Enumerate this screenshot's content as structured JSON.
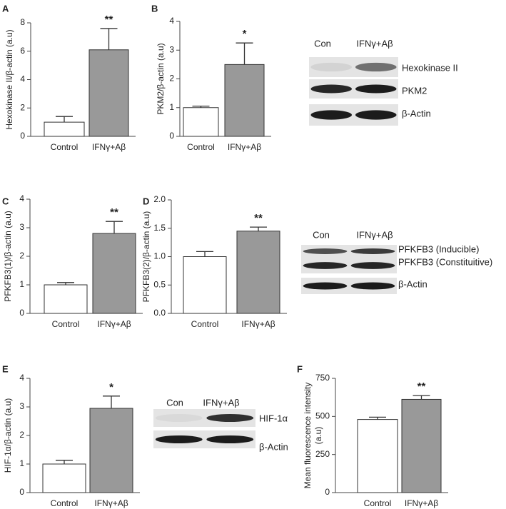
{
  "chart_data": [
    {
      "type": "bar",
      "panel": "A",
      "ylabel": "Hexokinase II/β-actin (a.u)",
      "categories": [
        "Control",
        "IFNγ+Aβ"
      ],
      "values": [
        1.0,
        6.1
      ],
      "errors": [
        0.4,
        1.5
      ],
      "colors": [
        "#ffffff",
        "#999999"
      ],
      "annotation": "**",
      "ylim": [
        0,
        8
      ],
      "yticks": [
        0,
        2,
        4,
        6,
        8
      ]
    },
    {
      "type": "bar",
      "panel": "B",
      "ylabel": "PKM2/β-actin (a.u)",
      "categories": [
        "Control",
        "IFNγ+Aβ"
      ],
      "values": [
        1.0,
        2.5
      ],
      "errors": [
        0.05,
        0.75
      ],
      "colors": [
        "#ffffff",
        "#999999"
      ],
      "annotation": "*",
      "ylim": [
        0,
        4
      ],
      "yticks": [
        0,
        1,
        2,
        3,
        4
      ],
      "blot": {
        "columns": [
          "Con",
          "IFNγ+Aβ"
        ],
        "rows": [
          "Hexokinase II",
          "PKM2",
          "β-Actin"
        ]
      }
    },
    {
      "type": "bar",
      "panel": "C",
      "ylabel": "PFKFB3(1)/β-actin (a.u)",
      "categories": [
        "Control",
        "IFNγ+Aβ"
      ],
      "values": [
        1.0,
        2.8
      ],
      "errors": [
        0.08,
        0.42
      ],
      "colors": [
        "#ffffff",
        "#999999"
      ],
      "annotation": "**",
      "ylim": [
        0,
        4
      ],
      "yticks": [
        0,
        1,
        2,
        3,
        4
      ]
    },
    {
      "type": "bar",
      "panel": "D",
      "ylabel": "PFKFB3(2)/β-actin (a.u)",
      "categories": [
        "Control",
        "IFNγ+Aβ"
      ],
      "values": [
        1.0,
        1.45
      ],
      "errors": [
        0.09,
        0.07
      ],
      "colors": [
        "#ffffff",
        "#999999"
      ],
      "annotation": "**",
      "ylim": [
        0,
        2
      ],
      "yticks": [
        {
          "value": 0,
          "label": "0.0"
        },
        {
          "value": 0.5,
          "label": "0.5"
        },
        {
          "value": 1,
          "label": "1.0"
        },
        {
          "value": 1.5,
          "label": "1.5"
        },
        {
          "value": 2,
          "label": "2.0"
        }
      ],
      "blot": {
        "columns": [
          "Con",
          "IFNγ+Aβ"
        ],
        "rows": [
          "PFKFB3 (Inducible)",
          "PFKFB3 (Constituitive)",
          "β-Actin"
        ]
      }
    },
    {
      "type": "bar",
      "panel": "E",
      "ylabel": "HIF-1α/β-actin (a.u)",
      "categories": [
        "Control",
        "IFNγ+Aβ"
      ],
      "values": [
        1.0,
        2.95
      ],
      "errors": [
        0.13,
        0.43
      ],
      "colors": [
        "#ffffff",
        "#999999"
      ],
      "annotation": "*",
      "ylim": [
        0,
        4
      ],
      "yticks": [
        0,
        1,
        2,
        3,
        4
      ],
      "blot": {
        "columns": [
          "Con",
          "IFNγ+Aβ"
        ],
        "rows": [
          "HIF-1α",
          "β-Actin"
        ]
      }
    },
    {
      "type": "bar",
      "panel": "F",
      "ylabel": [
        "Mean fluorescence intensity",
        "(a.u)"
      ],
      "categories": [
        "Control",
        "IFNγ+Aβ"
      ],
      "values": [
        480,
        612
      ],
      "errors": [
        15,
        25
      ],
      "colors": [
        "#ffffff",
        "#999999"
      ],
      "annotation": "**",
      "ylim": [
        0,
        750
      ],
      "yticks": [
        0,
        250,
        500,
        750
      ]
    }
  ]
}
